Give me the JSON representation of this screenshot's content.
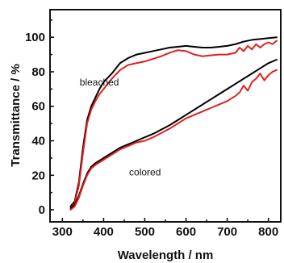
{
  "chart_data": {
    "type": "line",
    "xlabel": "Wavelength / nm",
    "ylabel": "Transmittance / %",
    "xlim": [
      270,
      830
    ],
    "ylim": [
      -7,
      116
    ],
    "xticks": [
      "300",
      "400",
      "500",
      "600",
      "700",
      "800"
    ],
    "yticks": [
      "0",
      "20",
      "40",
      "60",
      "80",
      "100"
    ],
    "grid": false,
    "annotations": [
      {
        "text": "bleached",
        "x": 342,
        "y": 72
      },
      {
        "text": "colored",
        "x": 462,
        "y": 20
      }
    ],
    "series": [
      {
        "color": "#000000",
        "x": [
          320,
          330,
          340,
          350,
          360,
          370,
          380,
          390,
          400,
          420,
          440,
          460,
          480,
          500,
          520,
          540,
          560,
          580,
          600,
          620,
          640,
          660,
          680,
          700,
          720,
          740,
          760,
          780,
          800,
          820
        ],
        "y": [
          2,
          5,
          16,
          36,
          52,
          60,
          65,
          70,
          74,
          79,
          85,
          88,
          90,
          91,
          92,
          93,
          94,
          94.5,
          95,
          94.5,
          94,
          94,
          94.5,
          95,
          96,
          97.5,
          98.5,
          99,
          99.5,
          100
        ]
      },
      {
        "color": "#e02020",
        "x": [
          320,
          330,
          340,
          350,
          360,
          370,
          380,
          390,
          400,
          420,
          440,
          460,
          480,
          500,
          520,
          540,
          560,
          580,
          600,
          620,
          640,
          660,
          680,
          700,
          720,
          730,
          740,
          750,
          760,
          770,
          780,
          790,
          800,
          810,
          820
        ],
        "y": [
          1,
          4,
          14,
          33,
          50,
          58,
          63,
          67,
          70,
          76,
          81,
          84,
          85,
          86,
          87.5,
          89,
          91,
          92.5,
          92,
          90,
          89,
          89.5,
          90,
          90,
          91,
          94,
          92,
          95,
          93,
          96,
          94,
          96,
          97,
          96,
          98
        ]
      },
      {
        "color": "#000000",
        "x": [
          320,
          330,
          340,
          350,
          360,
          370,
          380,
          400,
          420,
          440,
          460,
          480,
          500,
          520,
          540,
          560,
          580,
          600,
          620,
          640,
          660,
          680,
          700,
          720,
          740,
          760,
          780,
          800,
          820
        ],
        "y": [
          1,
          3,
          8,
          15,
          21,
          25,
          27,
          30,
          33,
          36,
          38,
          40,
          42,
          44,
          46.5,
          49,
          52,
          55,
          58,
          61,
          64,
          67,
          70,
          73,
          76,
          79,
          82,
          85,
          87
        ]
      },
      {
        "color": "#e02020",
        "x": [
          320,
          330,
          340,
          350,
          360,
          370,
          380,
          400,
          420,
          440,
          460,
          480,
          500,
          520,
          540,
          560,
          580,
          600,
          620,
          640,
          660,
          680,
          700,
          720,
          730,
          740,
          750,
          760,
          770,
          780,
          790,
          800,
          810,
          820
        ],
        "y": [
          0,
          2,
          7,
          14,
          20,
          24,
          26,
          29,
          32,
          35,
          37,
          39,
          40,
          42,
          44.5,
          47,
          50,
          53,
          55,
          57,
          59,
          61,
          63,
          66,
          68,
          72,
          69,
          74,
          76,
          79,
          75,
          78,
          80,
          81
        ]
      }
    ]
  }
}
